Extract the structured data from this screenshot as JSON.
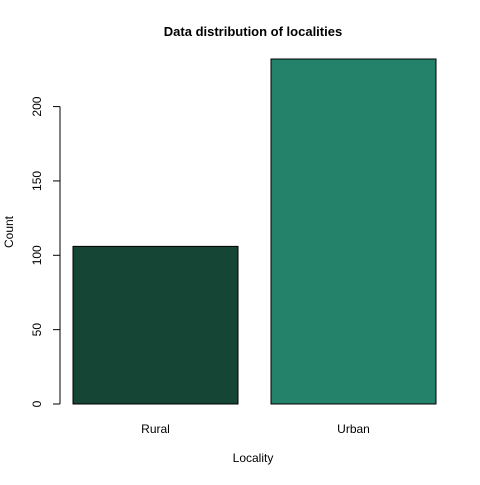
{
  "chart_data": {
    "type": "bar",
    "title": "Data distribution of localities",
    "xlabel": "Locality",
    "ylabel": "Count",
    "categories": [
      "Rural",
      "Urban"
    ],
    "values": [
      106,
      232
    ],
    "colors": [
      "#154535",
      "#24816A"
    ],
    "bar_border_color": "#000000",
    "ylim": [
      0,
      232
    ],
    "yticks": [
      0,
      50,
      100,
      150,
      200
    ],
    "grid": false,
    "legend": "none"
  }
}
